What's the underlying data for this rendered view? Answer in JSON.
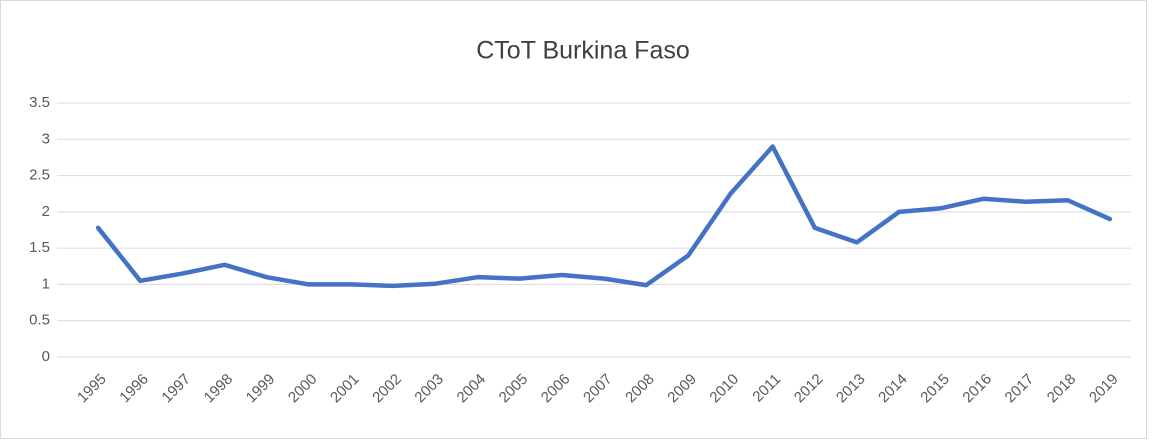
{
  "chart_data": {
    "type": "line",
    "title": "CToT Burkina Faso",
    "categories": [
      "1995",
      "1996",
      "1997",
      "1998",
      "1999",
      "2000",
      "2001",
      "2002",
      "2003",
      "2004",
      "2005",
      "2006",
      "2007",
      "2008",
      "2009",
      "2010",
      "2011",
      "2012",
      "2013",
      "2014",
      "2015",
      "2016",
      "2017",
      "2018",
      "2019"
    ],
    "values": [
      1.78,
      1.05,
      1.15,
      1.27,
      1.1,
      1.0,
      1.0,
      0.98,
      1.01,
      1.1,
      1.08,
      1.13,
      1.08,
      0.99,
      1.4,
      2.25,
      2.9,
      1.78,
      1.58,
      2.0,
      2.05,
      2.18,
      2.14,
      2.16,
      1.9
    ],
    "color": "#4472c4",
    "ylim": [
      0,
      3.5
    ],
    "yticks": [
      0,
      0.5,
      1,
      1.5,
      2,
      2.5,
      3,
      3.5
    ],
    "grid": true
  }
}
